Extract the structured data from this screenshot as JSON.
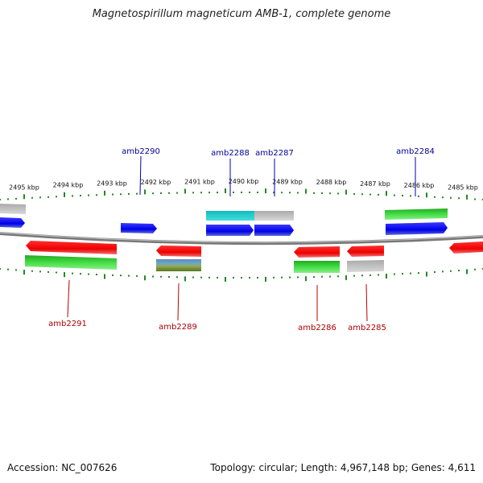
{
  "title": "Magnetospirillum magneticum AMB-1, complete genome",
  "footer": {
    "accession": "Accession: NC_007626",
    "summary": "Topology: circular; Length: 4,967,148 bp; Genes: 4,611"
  },
  "colors": {
    "forward_strand": "#0000ee",
    "reverse_strand": "#ee0000",
    "green_track": "#33cc33",
    "cyan_track": "#22cccc",
    "gray_track": "#bbbbbb",
    "backbone": "#888888",
    "ticks": "#228822",
    "top_label": "#000099",
    "bottom_label": "#aa0000"
  },
  "scale": {
    "unit": "kbp",
    "ticks_kbp": [
      2495,
      2494,
      2493,
      2492,
      2491,
      2490,
      2489,
      2488,
      2487,
      2486,
      2485
    ]
  },
  "genes": {
    "top": [
      {
        "name": "amb2290"
      },
      {
        "name": "amb2288"
      },
      {
        "name": "amb2287"
      },
      {
        "name": "amb2284"
      }
    ],
    "bottom": [
      {
        "name": "amb2291"
      },
      {
        "name": "amb2289"
      },
      {
        "name": "amb2286"
      },
      {
        "name": "amb2285"
      }
    ]
  }
}
